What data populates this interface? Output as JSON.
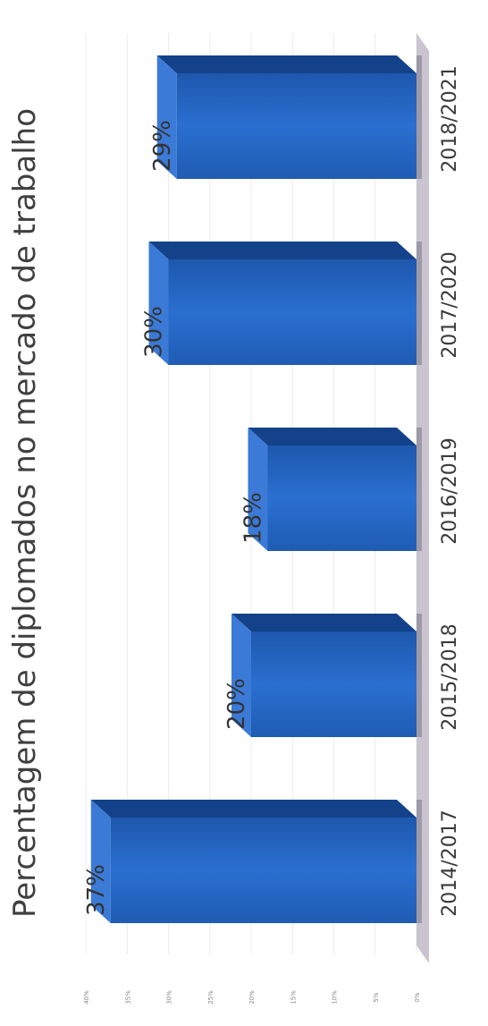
{
  "chart_data": {
    "type": "bar",
    "title": "Percentagem de diplomados no mercado de trabalho",
    "categories": [
      "2014/2017",
      "2015/2018",
      "2016/2019",
      "2017/2020",
      "2018/2021"
    ],
    "values": [
      37,
      20,
      18,
      30,
      29
    ],
    "data_labels": [
      "37%",
      "20%",
      "18%",
      "30%",
      "29%"
    ],
    "y_ticks": [
      "0%",
      "5%",
      "10%",
      "15%",
      "20%",
      "25%",
      "30%",
      "35%",
      "40%"
    ],
    "ylim": [
      0,
      40
    ],
    "bar_color": "#1f64c0",
    "style": "3d-bar",
    "grid": true,
    "xlabel": "",
    "ylabel": ""
  }
}
